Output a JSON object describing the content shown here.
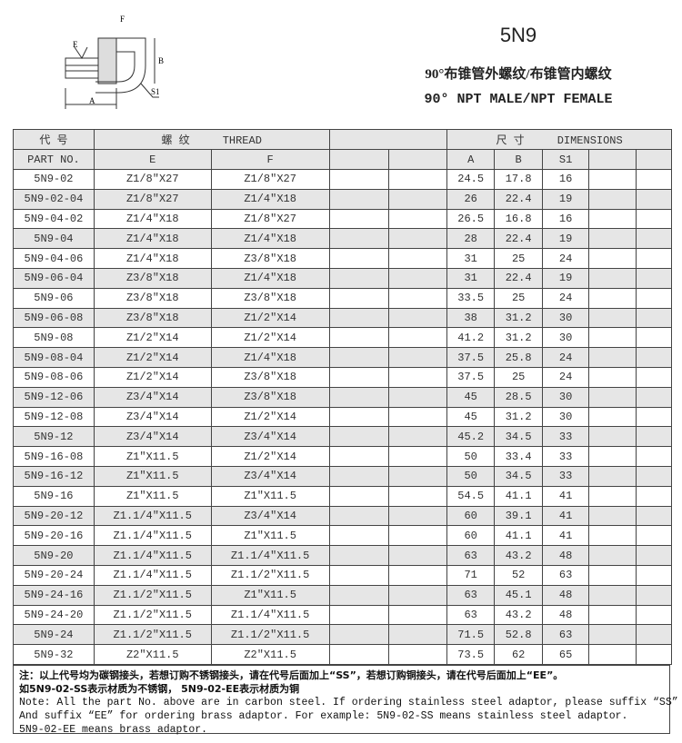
{
  "diagram": {
    "labels": {
      "F": "F",
      "E": "E",
      "B": "B",
      "S1": "S1",
      "A": "A"
    }
  },
  "header": {
    "code": "5N9",
    "title_cn": "90°布锥管外螺纹/布锥管内螺纹",
    "title_en": "90° NPT MALE/NPT FEMALE"
  },
  "table": {
    "head1": {
      "part": "代 号",
      "thread": "螺 纹     THREAD",
      "dimensions": "尺 寸     DIMENSIONS"
    },
    "head2": {
      "part": "PART NO.",
      "e": "E",
      "f": "F",
      "a": "A",
      "b": "B",
      "s1": "S1"
    },
    "rows": [
      [
        "5N9-02",
        "Z1/8″X27",
        "Z1/8″X27",
        "24.5",
        "17.8",
        "16"
      ],
      [
        "5N9-02-04",
        "Z1/8″X27",
        "Z1/4″X18",
        "26",
        "22.4",
        "19"
      ],
      [
        "5N9-04-02",
        "Z1/4″X18",
        "Z1/8″X27",
        "26.5",
        "16.8",
        "16"
      ],
      [
        "5N9-04",
        "Z1/4″X18",
        "Z1/4″X18",
        "28",
        "22.4",
        "19"
      ],
      [
        "5N9-04-06",
        "Z1/4″X18",
        "Z3/8″X18",
        "31",
        "25",
        "24"
      ],
      [
        "5N9-06-04",
        "Z3/8″X18",
        "Z1/4″X18",
        "31",
        "22.4",
        "19"
      ],
      [
        "5N9-06",
        "Z3/8″X18",
        "Z3/8″X18",
        "33.5",
        "25",
        "24"
      ],
      [
        "5N9-06-08",
        "Z3/8″X18",
        "Z1/2″X14",
        "38",
        "31.2",
        "30"
      ],
      [
        "5N9-08",
        "Z1/2″X14",
        "Z1/2″X14",
        "41.2",
        "31.2",
        "30"
      ],
      [
        "5N9-08-04",
        "Z1/2″X14",
        "Z1/4″X18",
        "37.5",
        "25.8",
        "24"
      ],
      [
        "5N9-08-06",
        "Z1/2″X14",
        "Z3/8″X18",
        "37.5",
        "25",
        "24"
      ],
      [
        "5N9-12-06",
        "Z3/4″X14",
        "Z3/8″X18",
        "45",
        "28.5",
        "30"
      ],
      [
        "5N9-12-08",
        "Z3/4″X14",
        "Z1/2″X14",
        "45",
        "31.2",
        "30"
      ],
      [
        "5N9-12",
        "Z3/4″X14",
        "Z3/4″X14",
        "45.2",
        "34.5",
        "33"
      ],
      [
        "5N9-16-08",
        "Z1″X11.5",
        "Z1/2″X14",
        "50",
        "33.4",
        "33"
      ],
      [
        "5N9-16-12",
        "Z1″X11.5",
        "Z3/4″X14",
        "50",
        "34.5",
        "33"
      ],
      [
        "5N9-16",
        "Z1″X11.5",
        "Z1″X11.5",
        "54.5",
        "41.1",
        "41"
      ],
      [
        "5N9-20-12",
        "Z1.1/4″X11.5",
        "Z3/4″X14",
        "60",
        "39.1",
        "41"
      ],
      [
        "5N9-20-16",
        "Z1.1/4″X11.5",
        "Z1″X11.5",
        "60",
        "41.1",
        "41"
      ],
      [
        "5N9-20",
        "Z1.1/4″X11.5",
        "Z1.1/4″X11.5",
        "63",
        "43.2",
        "48"
      ],
      [
        "5N9-20-24",
        "Z1.1/4″X11.5",
        "Z1.1/2″X11.5",
        "71",
        "52",
        "63"
      ],
      [
        "5N9-24-16",
        "Z1.1/2″X11.5",
        "Z1″X11.5",
        "63",
        "45.1",
        "48"
      ],
      [
        "5N9-24-20",
        "Z1.1/2″X11.5",
        "Z1.1/4″X11.5",
        "63",
        "43.2",
        "48"
      ],
      [
        "5N9-24",
        "Z1.1/2″X11.5",
        "Z1.1/2″X11.5",
        "71.5",
        "52.8",
        "63"
      ],
      [
        "5N9-32",
        "Z2″X11.5",
        "Z2″X11.5",
        "73.5",
        "62",
        "65"
      ]
    ]
  },
  "notes": [
    "注：以上代号均为碳钢接头，若想订购不锈钢接头，请在代号后面加上“SS”，若想订购铜接头，请在代号后面加上“EE”。",
    "如5N9-02-SS表示材质为不锈钢， 5N9-02-EE表示材质为铜",
    "Note: All the part No. above are in carbon steel. If ordering stainless steel adaptor, please suffix “SS” .",
    "And suffix “EE” for ordering brass adaptor. For example: 5N9-02-SS  means stainless steel adaptor.",
    "5N9-02-EE means brass adaptor."
  ]
}
